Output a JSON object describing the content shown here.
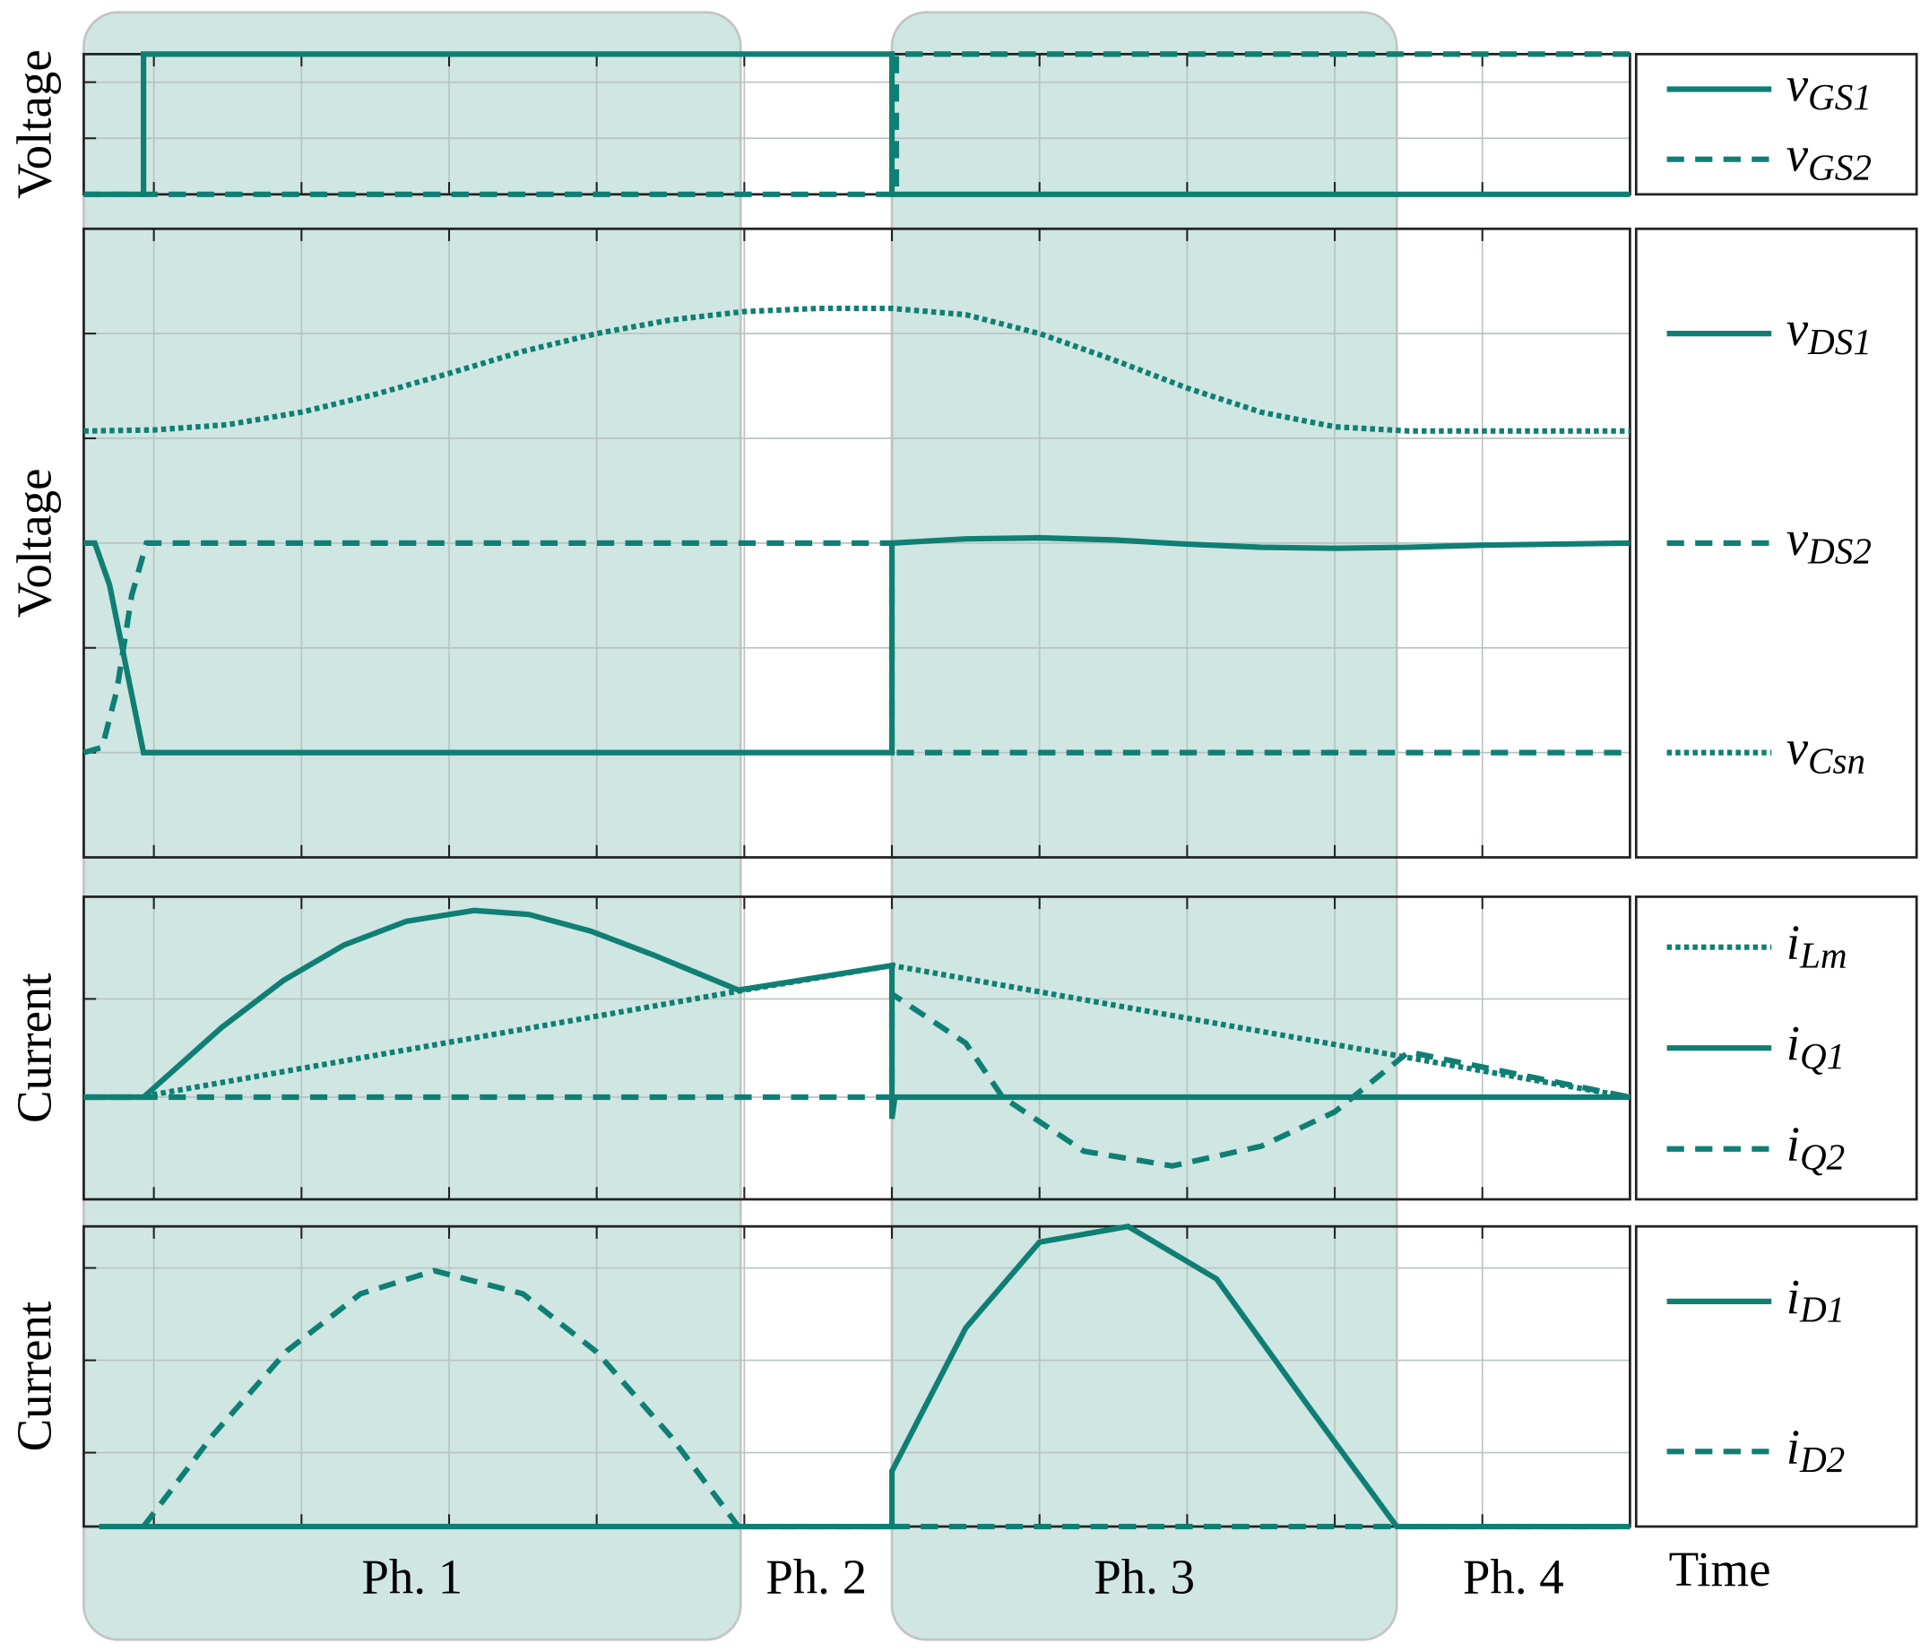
{
  "xlabel": "Time",
  "color": "#0f7f74",
  "phases": [
    {
      "label": "Ph. 1",
      "start": -0.475,
      "end": 3.975,
      "shaded": true
    },
    {
      "label": "Ph. 2",
      "start": 3.975,
      "end": 5,
      "shaded": false
    },
    {
      "label": "Ph. 3",
      "start": 5,
      "end": 8.42,
      "shaded": true
    },
    {
      "label": "Ph. 4",
      "start": 8.42,
      "end": 10,
      "shaded": false
    }
  ],
  "chart_data": [
    {
      "type": "line",
      "ylabel": "Voltage",
      "xlim": [
        -0.475,
        10
      ],
      "ylim": [
        0,
        2.5
      ],
      "xticks": [
        0,
        1,
        2,
        3,
        4,
        5,
        6,
        7,
        8,
        9,
        10
      ],
      "yticks": [
        1,
        2
      ],
      "grid": true,
      "series": [
        {
          "name": "vGS1",
          "style": "solid",
          "x": [
            -0.475,
            -0.07,
            -0.07,
            5,
            5,
            10
          ],
          "values": [
            0,
            0,
            2.5,
            2.5,
            0,
            0
          ]
        },
        {
          "name": "vGS2",
          "style": "dashed",
          "x": [
            -0.475,
            5.03,
            5.03,
            10
          ],
          "values": [
            0,
            0,
            2.5,
            2.5
          ]
        }
      ]
    },
    {
      "type": "line",
      "ylabel": "Voltage",
      "xlim": [
        -0.475,
        10
      ],
      "ylim": [
        0,
        6
      ],
      "xticks": [
        0,
        1,
        2,
        3,
        4,
        5,
        6,
        7,
        8,
        9,
        10
      ],
      "yticks": [
        1,
        2,
        3,
        4,
        5
      ],
      "grid": true,
      "series": [
        {
          "name": "vDS1",
          "style": "solid",
          "x": [
            -0.475,
            -0.4,
            -0.3,
            -0.2,
            -0.07,
            5,
            5,
            5.5,
            6,
            6.5,
            7,
            7.5,
            8,
            8.5,
            9,
            10
          ],
          "values": [
            3,
            3,
            2.6,
            1.9,
            1,
            1,
            3,
            3.04,
            3.05,
            3.03,
            2.99,
            2.96,
            2.95,
            2.96,
            2.98,
            3
          ]
        },
        {
          "name": "vDS2",
          "style": "dashed",
          "x": [
            -0.475,
            -0.35,
            -0.25,
            -0.15,
            -0.05,
            5,
            5,
            10
          ],
          "values": [
            1,
            1.05,
            1.6,
            2.5,
            3,
            3,
            1,
            1
          ]
        },
        {
          "name": "vCsn",
          "style": "dotted",
          "x": [
            -0.475,
            0,
            0.5,
            1,
            1.5,
            2,
            2.5,
            3,
            3.5,
            4,
            4.5,
            5,
            5.5,
            6,
            6.5,
            7,
            7.5,
            8,
            8.5,
            10
          ],
          "values": [
            4.07,
            4.08,
            4.13,
            4.25,
            4.42,
            4.62,
            4.83,
            5.0,
            5.13,
            5.21,
            5.24,
            5.24,
            5.18,
            5.0,
            4.75,
            4.48,
            4.25,
            4.11,
            4.07,
            4.07
          ]
        }
      ]
    },
    {
      "type": "line",
      "ylabel": "Current",
      "xlim": [
        -0.475,
        10
      ],
      "ylim": [
        -1.04,
        2.04
      ],
      "xticks": [
        0,
        1,
        2,
        3,
        4,
        5,
        6,
        7,
        8,
        9,
        10
      ],
      "yticks": [
        0,
        1
      ],
      "grid": true,
      "series": [
        {
          "name": "iLm",
          "style": "dotted",
          "x": [
            -0.475,
            -0.1,
            4,
            5,
            10
          ],
          "values": [
            0,
            0,
            1.09,
            1.34,
            0
          ]
        },
        {
          "name": "iQ1",
          "style": "solid",
          "x": [
            -0.475,
            -0.07,
            0.46,
            0.88,
            1.29,
            1.71,
            2.17,
            2.54,
            2.96,
            3.38,
            3.96,
            5,
            5,
            5.02,
            10
          ],
          "values": [
            0,
            0,
            0.71,
            1.19,
            1.55,
            1.79,
            1.9,
            1.86,
            1.69,
            1.45,
            1.09,
            1.34,
            -0.22,
            0,
            0
          ]
        },
        {
          "name": "iQ2",
          "style": "dashed",
          "x": [
            -0.475,
            5,
            5,
            5.5,
            5.75,
            6.3,
            6.9,
            7.5,
            8,
            8.5,
            10
          ],
          "values": [
            0,
            0,
            1.05,
            0.55,
            0,
            -0.55,
            -0.7,
            -0.5,
            -0.15,
            0.46,
            0
          ]
        }
      ]
    },
    {
      "type": "line",
      "ylabel": "Current",
      "xlim": [
        -0.475,
        10
      ],
      "ylim": [
        0,
        3.25
      ],
      "xticks": [
        0,
        1,
        2,
        3,
        4,
        5,
        6,
        7,
        8,
        9,
        10
      ],
      "yticks": [
        0.8,
        1.8,
        2.8
      ],
      "grid": true,
      "series": [
        {
          "name": "iD1",
          "style": "solid",
          "x": [
            -0.37,
            5,
            5,
            5.5,
            6,
            6.6,
            7.2,
            7.8,
            8.42,
            10
          ],
          "values": [
            0,
            0,
            0.6,
            2.15,
            3.08,
            3.25,
            2.68,
            1.35,
            0,
            0
          ]
        },
        {
          "name": "iD2",
          "style": "dashed",
          "x": [
            -0.07,
            0.4,
            0.9,
            1.4,
            1.9,
            2.5,
            3,
            3.5,
            3.96,
            5,
            10
          ],
          "values": [
            0,
            0.99,
            1.9,
            2.52,
            2.77,
            2.52,
            1.89,
            0.98,
            0,
            0,
            0
          ]
        }
      ]
    }
  ]
}
